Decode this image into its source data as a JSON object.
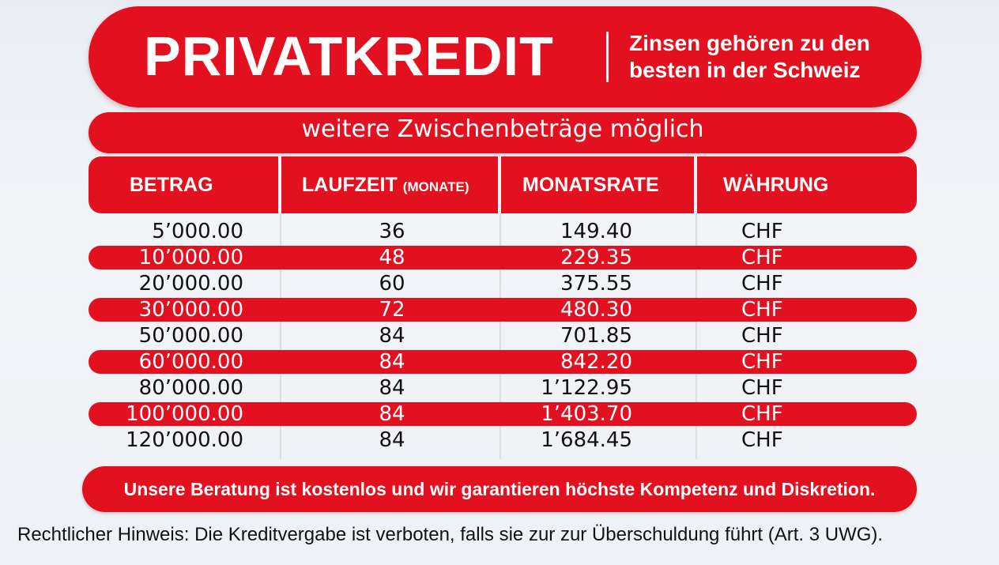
{
  "banner": {
    "title": "PRIVATKREDIT",
    "tagline_line1": "Zinsen gehören zu den",
    "tagline_line2": "besten in der Schweiz"
  },
  "subtitle": "weitere Zwischenbeträge möglich",
  "table": {
    "headers": {
      "amount": "BETRAG",
      "term": "LAUFZEIT",
      "term_unit": "(MONATE)",
      "monthly_rate": "MONATSRATE",
      "currency": "WÄHRUNG"
    },
    "rows": [
      {
        "amount": "5’000.00",
        "term": "36",
        "rate": "149.40",
        "currency": "CHF"
      },
      {
        "amount": "10’000.00",
        "term": "48",
        "rate": "229.35",
        "currency": "CHF"
      },
      {
        "amount": "20’000.00",
        "term": "60",
        "rate": "375.55",
        "currency": "CHF"
      },
      {
        "amount": "30’000.00",
        "term": "72",
        "rate": "480.30",
        "currency": "CHF"
      },
      {
        "amount": "50’000.00",
        "term": "84",
        "rate": "701.85",
        "currency": "CHF"
      },
      {
        "amount": "60’000.00",
        "term": "84",
        "rate": "842.20",
        "currency": "CHF"
      },
      {
        "amount": "80’000.00",
        "term": "84",
        "rate": "1’122.95",
        "currency": "CHF"
      },
      {
        "amount": "100’000.00",
        "term": "84",
        "rate": "1’403.70",
        "currency": "CHF"
      },
      {
        "amount": "120’000.00",
        "term": "84",
        "rate": "1’684.45",
        "currency": "CHF"
      }
    ]
  },
  "footer_message": "Unsere Beratung ist kostenlos und wir garantieren höchste Kompetenz und Diskretion.",
  "legal_notice": "Rechtlicher Hinweis: Die Kreditvergabe ist verboten, falls sie zur zur Überschuldung führt (Art. 3 UWG).",
  "colors": {
    "accent": "#e3111f",
    "background": "#eef1f5"
  }
}
